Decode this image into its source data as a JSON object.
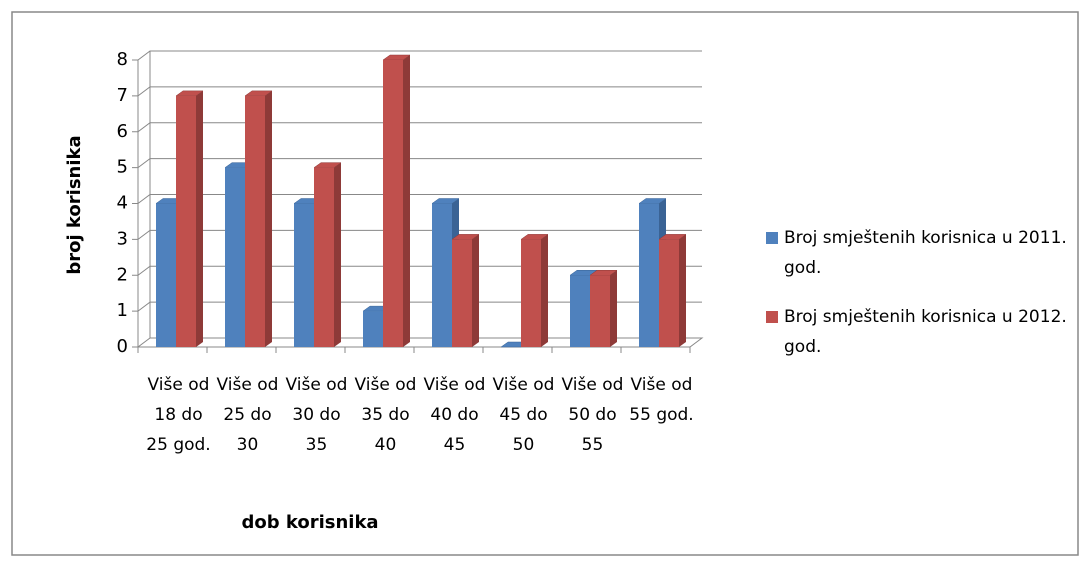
{
  "chart_data": {
    "type": "bar3d",
    "categories": [
      "Više od 18 do 25 god.",
      "Više od 25 do 30",
      "Više od 30 do 35",
      "Više od 35 do 40",
      "Više od 40 do 45",
      "Više od 45 do 50",
      "Više od 50 do 55",
      "Više od 55 god."
    ],
    "series": [
      {
        "name": "Broj smještenih korisnica u 2011. god.",
        "color": "#4f81bd",
        "side": "#3a6395",
        "values": [
          4,
          5,
          4,
          1,
          4,
          0,
          2,
          4
        ]
      },
      {
        "name": "Broj smještenih korisnica u 2012. god.",
        "color": "#c0504d",
        "side": "#8e3a38",
        "values": [
          7,
          7,
          5,
          8,
          3,
          3,
          2,
          3
        ]
      }
    ],
    "y_label": "broj korisnika",
    "x_label": "dob korisnika",
    "ylim": [
      0,
      8
    ],
    "yticks": [
      0,
      1,
      2,
      3,
      4,
      5,
      6,
      7,
      8
    ],
    "grid": true
  }
}
